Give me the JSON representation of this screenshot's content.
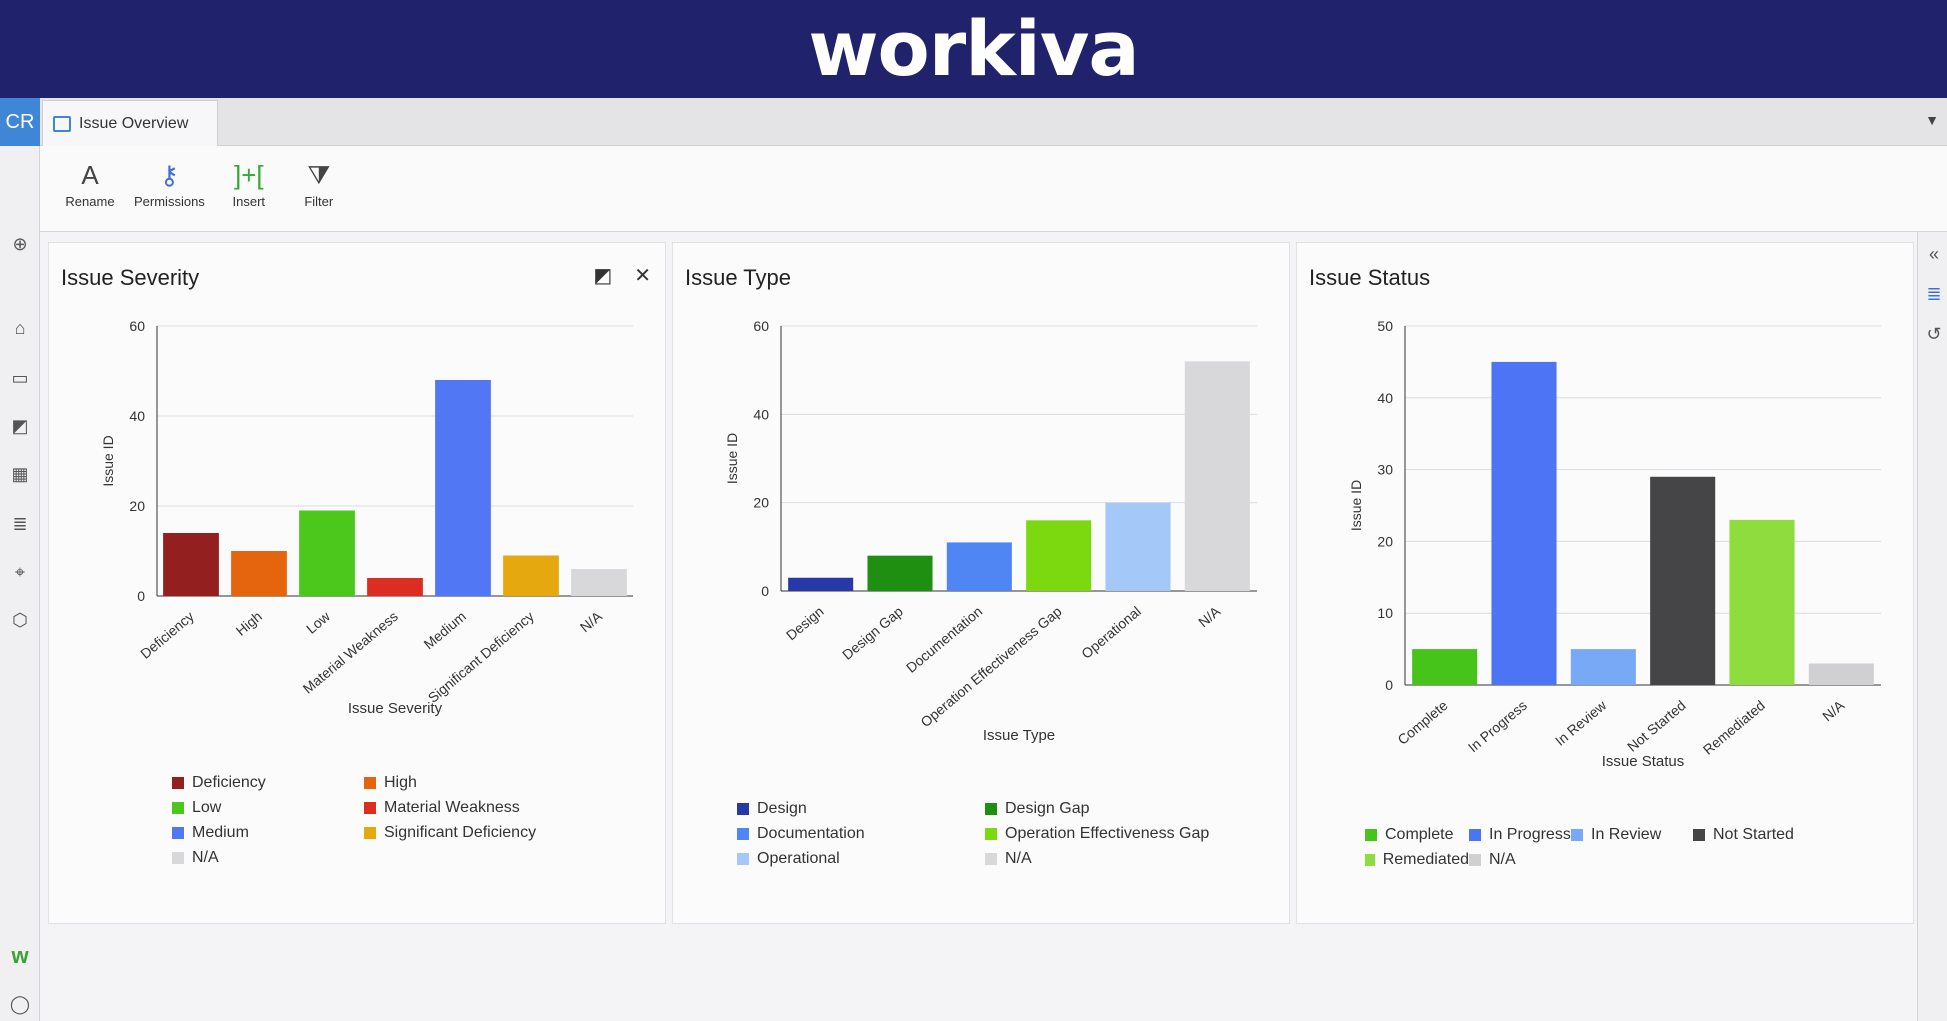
{
  "banner": {
    "logo_text": "workiva"
  },
  "app": {
    "badge": "CR",
    "tab_label": "Issue Overview",
    "toolbar": [
      {
        "label": "Rename",
        "icon": "rename-icon",
        "glyph": "A"
      },
      {
        "label": "Permissions",
        "icon": "key-icon",
        "glyph": "⚷"
      },
      {
        "label": "Insert",
        "icon": "insert-icon",
        "glyph": "]+["
      },
      {
        "label": "Filter",
        "icon": "filter-icon",
        "glyph": "⧩"
      }
    ]
  },
  "left_rail_icons": [
    "plus-circle-icon",
    "home-icon",
    "folder-icon",
    "document-icon",
    "dashboard-icon",
    "database-icon",
    "map-icon",
    "cube-icon",
    "workiva-w-icon",
    "user-circle-icon"
  ],
  "right_rail_icons": [
    "collapse-icon",
    "database-icon",
    "history-icon"
  ],
  "cards": [
    {
      "title": "Issue Severity",
      "chart_data": {
        "type": "bar",
        "title": "Issue Severity",
        "xlabel": "Issue Severity",
        "ylabel": "Issue ID",
        "ylim": [
          0,
          60
        ],
        "yticks": [
          0,
          20,
          40,
          60
        ],
        "categories": [
          "Deficiency",
          "High",
          "Low",
          "Material Weakness",
          "Medium",
          "Significant Deficiency",
          "N/A"
        ],
        "values": [
          14,
          10,
          19,
          4,
          48,
          9,
          6
        ],
        "colors": [
          "#941f1f",
          "#e5650f",
          "#4cc81c",
          "#dc2d22",
          "#5177f5",
          "#e5a90f",
          "#d8d8da"
        ],
        "grid": "horizontal",
        "legend_placement": "bottom"
      }
    },
    {
      "title": "Issue Type",
      "chart_data": {
        "type": "bar",
        "title": "Issue Type",
        "xlabel": "Issue Type",
        "ylabel": "Issue ID",
        "ylim": [
          0,
          60
        ],
        "yticks": [
          0,
          20,
          40,
          60
        ],
        "categories": [
          "Design",
          "Design Gap",
          "Documentation",
          "Operation Effectiveness Gap",
          "Operational",
          "N/A"
        ],
        "values": [
          3,
          8,
          11,
          16,
          20,
          52
        ],
        "colors": [
          "#2838a8",
          "#1f8f12",
          "#4f86f3",
          "#7cd80f",
          "#a4c8f8",
          "#d8d8da"
        ],
        "grid": "horizontal",
        "legend_placement": "bottom"
      }
    },
    {
      "title": "Issue Status",
      "chart_data": {
        "type": "bar",
        "title": "Issue Status",
        "xlabel": "Issue Status",
        "ylabel": "Issue ID",
        "ylim": [
          0,
          50
        ],
        "yticks": [
          0,
          10,
          20,
          30,
          40,
          50
        ],
        "categories": [
          "Complete",
          "In Progress",
          "In Review",
          "Not Started",
          "Remediated",
          "N/A"
        ],
        "values": [
          5,
          45,
          5,
          29,
          23,
          3
        ],
        "colors": [
          "#46c41a",
          "#4d74f4",
          "#78a9f6",
          "#454547",
          "#8fdc3e",
          "#d0d0d3"
        ],
        "grid": "horizontal",
        "legend_placement": "bottom"
      }
    }
  ]
}
